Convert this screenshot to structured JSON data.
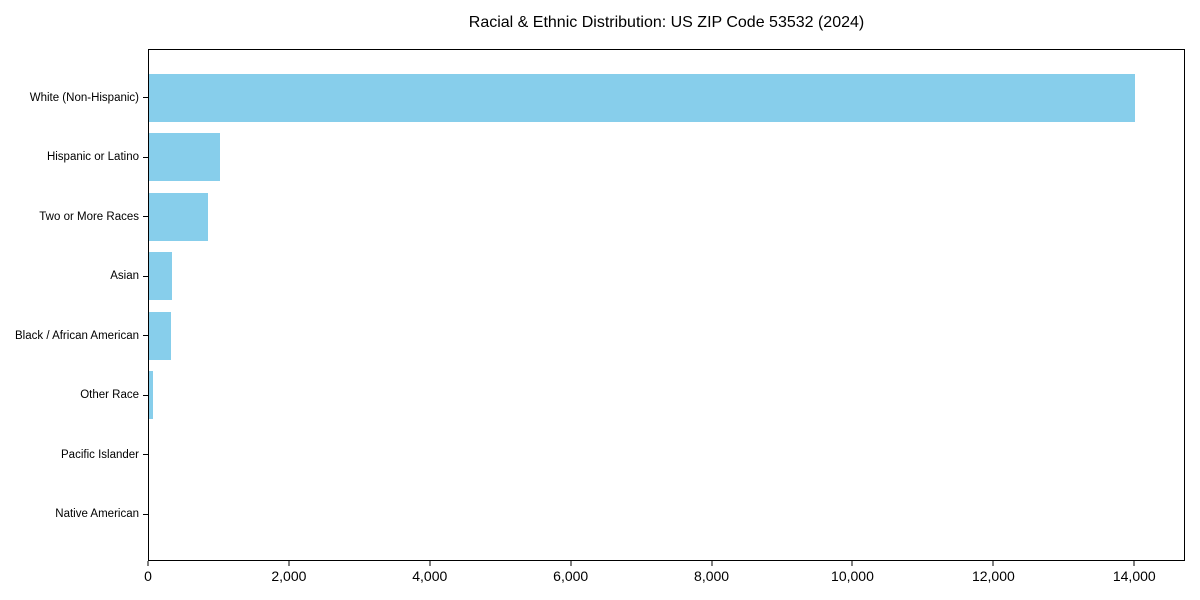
{
  "chart_data": {
    "type": "bar",
    "orientation": "horizontal",
    "title": "Racial & Ethnic Distribution: US ZIP Code 53532 (2024)",
    "categories": [
      "White (Non-Hispanic)",
      "Hispanic or Latino",
      "Two or More Races",
      "Asian",
      "Black / African American",
      "Other Race",
      "Pacific Islander",
      "Native American"
    ],
    "values": [
      14030,
      1010,
      840,
      330,
      310,
      60,
      0,
      0
    ],
    "xlabel": "",
    "ylabel": "",
    "xlim": [
      0,
      14720
    ],
    "x_ticks": [
      0,
      2000,
      4000,
      6000,
      8000,
      10000,
      12000,
      14000
    ],
    "x_tick_labels": [
      "0",
      "2,000",
      "4,000",
      "6,000",
      "8,000",
      "10,000",
      "12,000",
      "14,000"
    ],
    "bar_color": "#87CEEB",
    "background_color": "#ffffff",
    "grid": false,
    "legend": "none"
  }
}
